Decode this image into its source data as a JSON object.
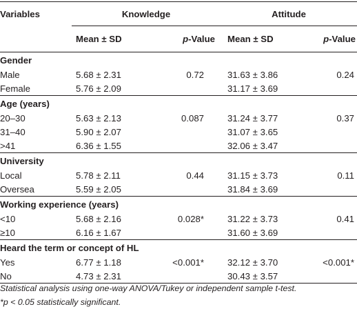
{
  "header": {
    "variables": "Variables",
    "knowledge": "Knowledge",
    "attitude": "Attitude",
    "mean_sd": "Mean ± SD",
    "p_italic": "p",
    "p_rest": "-Value"
  },
  "groups": [
    {
      "title": "Gender",
      "rows": [
        {
          "label": "Male",
          "k_mean": "5.68 ± 2.31",
          "k_p": "0.72",
          "a_mean": "31.63 ± 3.86",
          "a_p": "0.24"
        },
        {
          "label": "Female",
          "k_mean": "5.76 ± 2.09",
          "k_p": "",
          "a_mean": "31.17 ± 3.69",
          "a_p": ""
        }
      ]
    },
    {
      "title": "Age (years)",
      "rows": [
        {
          "label": "20–30",
          "k_mean": "5.63 ± 2.13",
          "k_p": "0.087",
          "a_mean": "31.24 ± 3.77",
          "a_p": "0.37"
        },
        {
          "label": "31–40",
          "k_mean": "5.90 ± 2.07",
          "k_p": "",
          "a_mean": "31.07 ± 3.65",
          "a_p": ""
        },
        {
          "label": ">41",
          "k_mean": "6.36 ± 1.55",
          "k_p": "",
          "a_mean": "32.06 ± 3.47",
          "a_p": ""
        }
      ]
    },
    {
      "title": "University",
      "rows": [
        {
          "label": "Local",
          "k_mean": "5.78 ± 2.11",
          "k_p": "0.44",
          "a_mean": "31.15 ± 3.73",
          "a_p": "0.11"
        },
        {
          "label": "Oversea",
          "k_mean": "5.59 ± 2.05",
          "k_p": "",
          "a_mean": "31.84 ± 3.69",
          "a_p": ""
        }
      ]
    },
    {
      "title": "Working experience (years)",
      "rows": [
        {
          "label": "<10",
          "k_mean": "5.68 ± 2.16",
          "k_p": "0.028*",
          "a_mean": "31.22 ± 3.73",
          "a_p": "0.41"
        },
        {
          "label": "≥10",
          "k_mean": "6.16 ± 1.67",
          "k_p": "",
          "a_mean": "31.60 ± 3.69",
          "a_p": ""
        }
      ]
    },
    {
      "title": "Heard the term or concept of HL",
      "rows": [
        {
          "label": "Yes",
          "k_mean": "6.77 ± 1.18",
          "k_p": "<0.001*",
          "a_mean": "32.12 ± 3.70",
          "a_p": "<0.001*"
        },
        {
          "label": "No",
          "k_mean": "4.73 ± 2.31",
          "k_p": "",
          "a_mean": "30.43 ± 3.57",
          "a_p": ""
        }
      ]
    }
  ],
  "notes": {
    "line1": "Statistical analysis using one-way ANOVA/Tukey or independent sample t-test.",
    "line2": "*p < 0.05 statistically significant."
  }
}
